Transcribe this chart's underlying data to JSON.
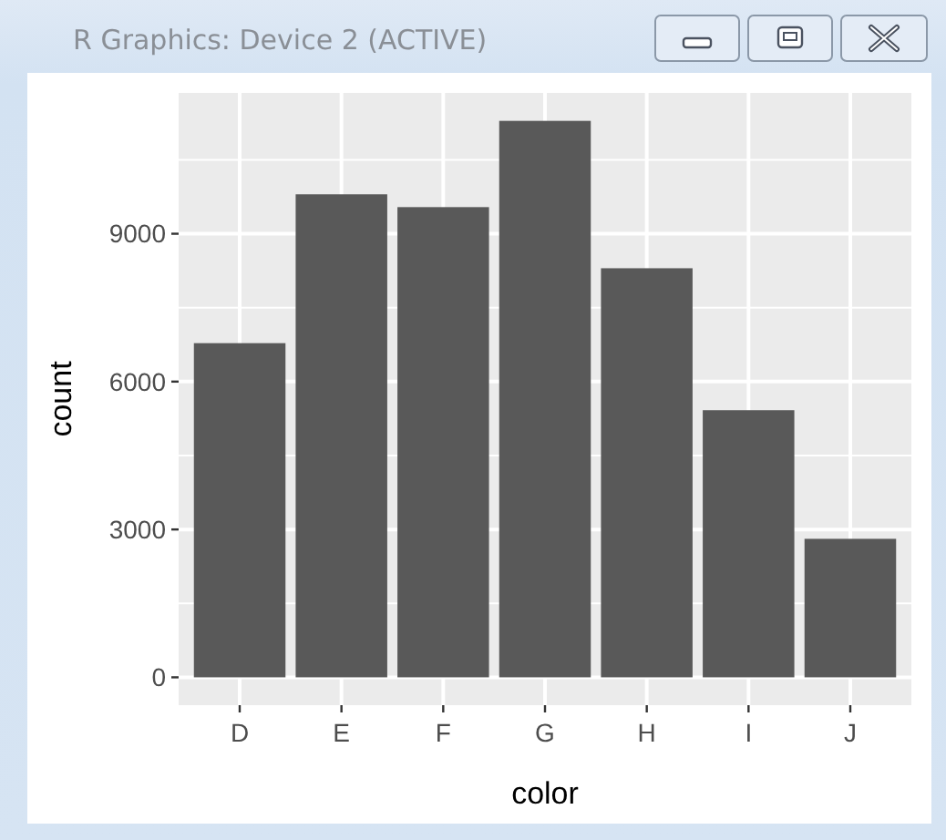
{
  "chart_data": {
    "type": "bar",
    "xlabel": "color",
    "ylabel": "count",
    "annotations": [
      "R Graphics: Device 2 (ACTIVE)"
    ],
    "categories": [
      "D",
      "E",
      "F",
      "G",
      "H",
      "I",
      "J"
    ],
    "values": [
      6780,
      9800,
      9540,
      11290,
      8300,
      5420,
      2810
    ],
    "color": "#595959",
    "ylim": [
      -565,
      11857
    ],
    "yticks": [
      0,
      3000,
      6000,
      9000
    ],
    "grid": true
  }
}
